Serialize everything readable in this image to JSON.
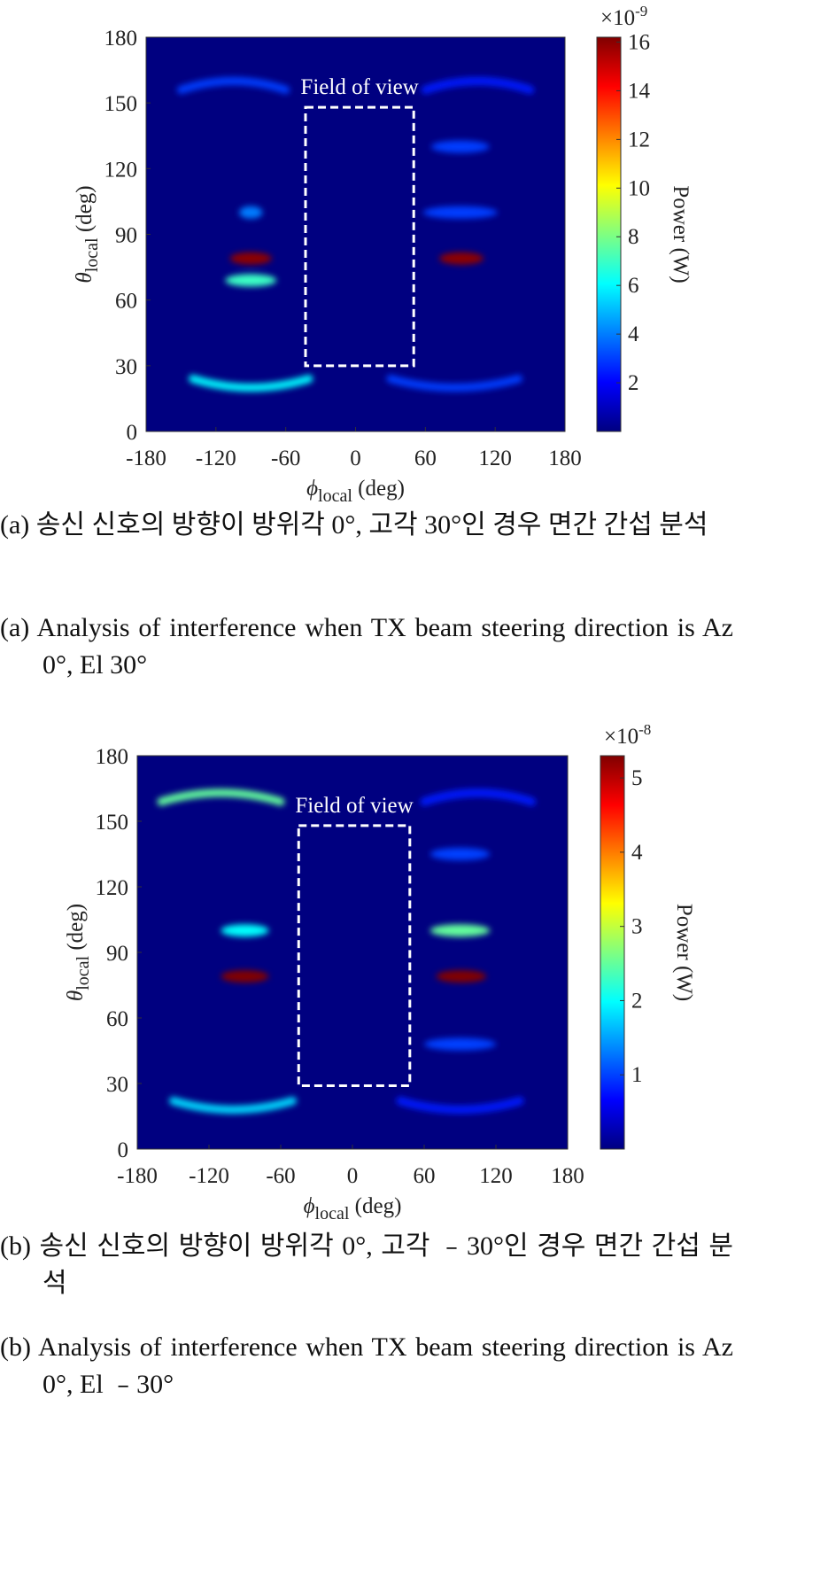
{
  "chart_data": [
    {
      "type": "heatmap",
      "xlabel": {
        "symbol": "ϕ",
        "subscript": "local",
        "unit": " (deg)"
      },
      "ylabel": {
        "symbol": "θ",
        "subscript": "local",
        "unit": " (deg)"
      },
      "xlim": [
        -180,
        180
      ],
      "xticks": [
        -180,
        -120,
        -60,
        0,
        60,
        120,
        180
      ],
      "ylim": [
        0,
        180
      ],
      "yticks": [
        0,
        30,
        60,
        90,
        120,
        150,
        180
      ],
      "colormap": "jet",
      "clim": [
        0,
        16.2
      ],
      "cticks": [
        2,
        4,
        6,
        8,
        10,
        12,
        14,
        16
      ],
      "cbar_label": "Power (W)",
      "cbar_multiplier": {
        "base": "×10",
        "exponent": "-9"
      },
      "fov": {
        "label": "Field of view",
        "phi": [
          -43,
          50
        ],
        "theta": [
          30,
          148
        ]
      },
      "features": [
        {
          "phi_range": [
            -150,
            -60
          ],
          "theta": 160,
          "value": 3
        },
        {
          "phi_range": [
            60,
            150
          ],
          "theta": 160,
          "value": 2.5
        },
        {
          "phi_range": [
            65,
            115
          ],
          "theta": 130,
          "value": 3
        },
        {
          "phi_range": [
            -100,
            -80
          ],
          "theta": 100,
          "value": 4
        },
        {
          "phi_range": [
            58,
            122
          ],
          "theta": 100,
          "value": 3
        },
        {
          "phi_range": [
            -112,
            -68
          ],
          "theta": 69,
          "value": 7
        },
        {
          "phi_range": [
            -108,
            -72
          ],
          "theta": 79,
          "value": 16
        },
        {
          "phi_range": [
            72,
            110
          ],
          "theta": 79,
          "value": 16
        },
        {
          "phi_range": [
            -140,
            -40
          ],
          "theta": 20,
          "value": 6
        },
        {
          "phi_range": [
            30,
            140
          ],
          "theta": 20,
          "value": 3
        }
      ],
      "caption_ko": "(a) 송신 신호의 방향이 방위각 0°, 고각 30°인 경우 면간 간섭 분석",
      "caption_en": "(a) Analysis of interference when TX beam steering direction is Az 0°, El 30°"
    },
    {
      "type": "heatmap",
      "xlabel": {
        "symbol": "ϕ",
        "subscript": "local",
        "unit": " (deg)"
      },
      "ylabel": {
        "symbol": "θ",
        "subscript": "local",
        "unit": " (deg)"
      },
      "xlim": [
        -180,
        180
      ],
      "xticks": [
        -180,
        -120,
        -60,
        0,
        60,
        120,
        180
      ],
      "ylim": [
        0,
        180
      ],
      "yticks": [
        0,
        30,
        60,
        90,
        120,
        150,
        180
      ],
      "colormap": "jet",
      "clim": [
        0,
        5.3
      ],
      "cticks": [
        1,
        2,
        3,
        4,
        5
      ],
      "cbar_label": "Power (W)",
      "cbar_multiplier": {
        "base": "×10",
        "exponent": "-8"
      },
      "fov": {
        "label": "Field of view",
        "phi": [
          -45,
          48
        ],
        "theta": [
          29,
          148
        ]
      },
      "features": [
        {
          "phi_range": [
            -160,
            -60
          ],
          "theta": 163,
          "value": 2.5
        },
        {
          "phi_range": [
            60,
            150
          ],
          "theta": 163,
          "value": 0.8
        },
        {
          "phi_range": [
            65,
            115
          ],
          "theta": 135,
          "value": 1
        },
        {
          "phi_range": [
            -110,
            -70
          ],
          "theta": 100,
          "value": 2
        },
        {
          "phi_range": [
            65,
            115
          ],
          "theta": 100,
          "value": 2.5
        },
        {
          "phi_range": [
            -110,
            -70
          ],
          "theta": 79,
          "value": 5.3
        },
        {
          "phi_range": [
            70,
            112
          ],
          "theta": 79,
          "value": 5.3
        },
        {
          "phi_range": [
            60,
            120
          ],
          "theta": 48,
          "value": 1
        },
        {
          "phi_range": [
            -150,
            -50
          ],
          "theta": 18,
          "value": 1.8
        },
        {
          "phi_range": [
            40,
            140
          ],
          "theta": 18,
          "value": 0.8
        }
      ],
      "caption_ko": "(b) 송신 신호의 방향이 방위각 0°, 고각 ﹣30°인 경우 면간 간섭 분석",
      "caption_en": "(b) Analysis of interference when TX beam steering direction is Az 0°, El ﹣30°"
    }
  ]
}
